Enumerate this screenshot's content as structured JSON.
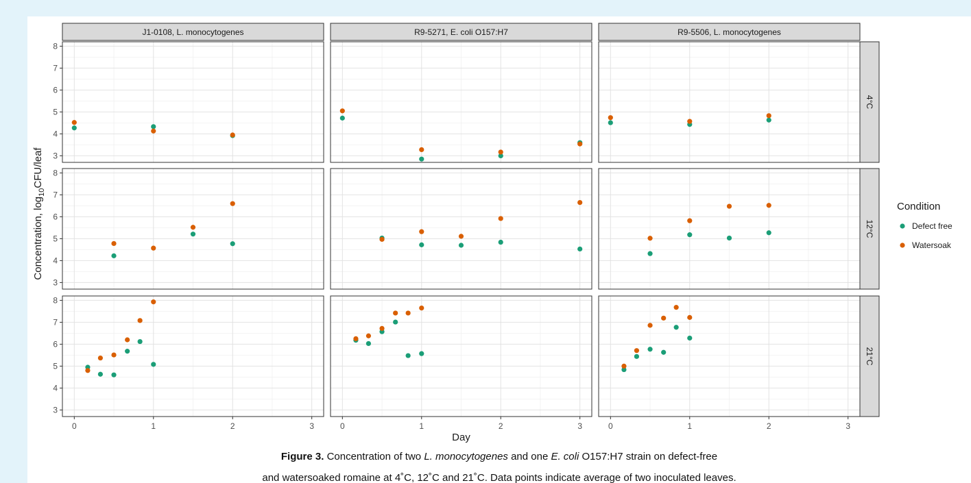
{
  "chart_data": {
    "type": "scatter",
    "xlabel": "Day",
    "ylabel": "Concentration, log10CFU/leaf",
    "ylabel_main": "Concentration, log",
    "ylabel_sub": "10",
    "ylabel_tail": "CFU/leaf",
    "xlim": [
      -0.15,
      3.15
    ],
    "ylim": [
      2.7,
      8.2
    ],
    "x_ticks": [
      0,
      1,
      2,
      3
    ],
    "y_ticks": [
      3,
      4,
      5,
      6,
      7,
      8
    ],
    "grid": true,
    "legend_position": "right",
    "legend": {
      "title": "Condition",
      "entries": [
        {
          "name": "Defect free",
          "color": "#1b9e77"
        },
        {
          "name": "Watersoak",
          "color": "#d95f02"
        }
      ]
    },
    "columns": [
      "J1-0108, L. monocytogenes",
      "R9-5271, E. coli O157:H7",
      "R9-5506, L. monocytogenes"
    ],
    "rows": [
      "4°C",
      "12°C",
      "21°C"
    ],
    "panels": [
      {
        "col": 0,
        "row": 0,
        "series": [
          {
            "name": "Defect free",
            "x": [
              0,
              1,
              2
            ],
            "y": [
              4.27,
              4.33,
              3.92
            ]
          },
          {
            "name": "Watersoak",
            "x": [
              0,
              1,
              2
            ],
            "y": [
              4.52,
              4.13,
              3.95
            ]
          }
        ]
      },
      {
        "col": 1,
        "row": 0,
        "series": [
          {
            "name": "Defect free",
            "x": [
              0,
              1,
              2,
              3
            ],
            "y": [
              4.72,
              2.85,
              3.0,
              3.6
            ]
          },
          {
            "name": "Watersoak",
            "x": [
              0,
              1,
              2,
              3
            ],
            "y": [
              5.05,
              3.28,
              3.17,
              3.54
            ]
          }
        ]
      },
      {
        "col": 2,
        "row": 0,
        "series": [
          {
            "name": "Defect free",
            "x": [
              0,
              1,
              2
            ],
            "y": [
              4.51,
              4.43,
              4.63
            ]
          },
          {
            "name": "Watersoak",
            "x": [
              0,
              1,
              2
            ],
            "y": [
              4.74,
              4.57,
              4.83
            ]
          }
        ]
      },
      {
        "col": 0,
        "row": 1,
        "series": [
          {
            "name": "Defect free",
            "x": [
              0.5,
              1.5,
              2
            ],
            "y": [
              4.22,
              5.21,
              4.77
            ]
          },
          {
            "name": "Watersoak",
            "x": [
              0.5,
              1,
              1.5,
              2
            ],
            "y": [
              4.78,
              4.57,
              5.52,
              6.6
            ]
          }
        ]
      },
      {
        "col": 1,
        "row": 1,
        "series": [
          {
            "name": "Defect free",
            "x": [
              0.5,
              1,
              1.5,
              2,
              3
            ],
            "y": [
              5.03,
              4.72,
              4.7,
              4.84,
              4.53
            ]
          },
          {
            "name": "Watersoak",
            "x": [
              0.5,
              1,
              1.5,
              2,
              3
            ],
            "y": [
              4.97,
              5.32,
              5.11,
              5.92,
              6.65
            ]
          }
        ]
      },
      {
        "col": 2,
        "row": 1,
        "series": [
          {
            "name": "Defect free",
            "x": [
              0.5,
              1,
              1.5,
              2
            ],
            "y": [
              4.32,
              5.18,
              5.03,
              5.27
            ]
          },
          {
            "name": "Watersoak",
            "x": [
              0.5,
              1,
              1.5,
              2
            ],
            "y": [
              5.02,
              5.82,
              6.48,
              6.52
            ]
          }
        ]
      },
      {
        "col": 0,
        "row": 2,
        "series": [
          {
            "name": "Defect free",
            "x": [
              0.17,
              0.33,
              0.5,
              0.67,
              0.83,
              1
            ],
            "y": [
              4.95,
              4.63,
              4.6,
              5.68,
              6.12,
              5.08
            ]
          },
          {
            "name": "Watersoak",
            "x": [
              0.17,
              0.33,
              0.5,
              0.67,
              0.83,
              1
            ],
            "y": [
              4.8,
              5.37,
              5.51,
              6.2,
              7.08,
              7.93
            ]
          }
        ]
      },
      {
        "col": 1,
        "row": 2,
        "series": [
          {
            "name": "Defect free",
            "x": [
              0.17,
              0.33,
              0.5,
              0.67,
              0.83,
              1
            ],
            "y": [
              6.18,
              6.03,
              6.57,
              7.01,
              5.48,
              5.57
            ]
          },
          {
            "name": "Watersoak",
            "x": [
              0.17,
              0.33,
              0.5,
              0.67,
              0.83,
              1
            ],
            "y": [
              6.25,
              6.38,
              6.72,
              7.42,
              7.42,
              7.65
            ]
          }
        ]
      },
      {
        "col": 2,
        "row": 2,
        "series": [
          {
            "name": "Defect free",
            "x": [
              0.17,
              0.33,
              0.5,
              0.67,
              0.83,
              1
            ],
            "y": [
              4.84,
              5.44,
              5.77,
              5.63,
              6.77,
              6.28
            ]
          },
          {
            "name": "Watersoak",
            "x": [
              0.17,
              0.33,
              0.5,
              0.67,
              0.83,
              1
            ],
            "y": [
              5.0,
              5.71,
              6.86,
              7.19,
              7.68,
              7.22
            ]
          }
        ]
      }
    ]
  },
  "caption": {
    "figure_label": "Figure 3.",
    "line1_a": " Concentration of two ",
    "line1_b": "L. monocytogenes",
    "line1_c": " and one ",
    "line1_d": "E. coli",
    "line1_e": " O157:H7 strain on defect-free",
    "line2": "and watersoaked romaine at 4˚C, 12˚C and 21˚C. Data points indicate average of two inoculated leaves."
  }
}
